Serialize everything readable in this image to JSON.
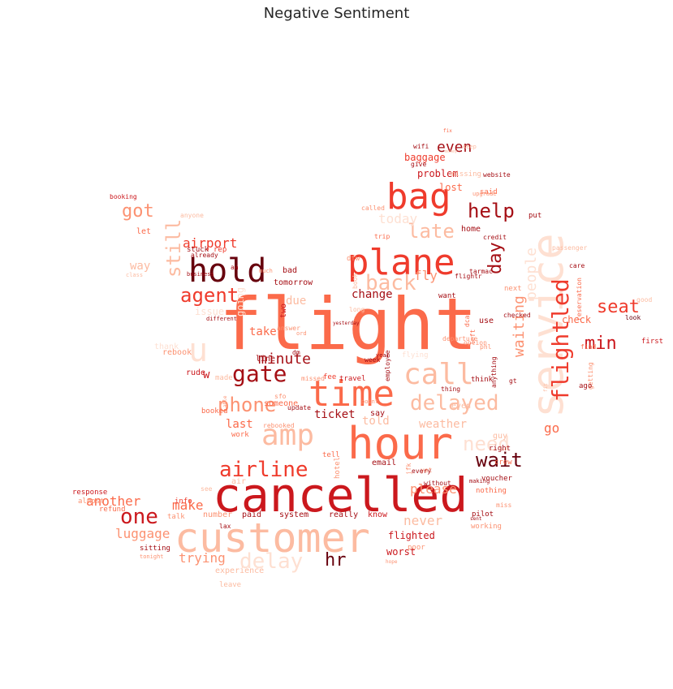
{
  "title": "Negative Sentiment",
  "palette": [
    "#67000d",
    "#a50f15",
    "#cb181d",
    "#ef3b2c",
    "#fb6a4a",
    "#fc9272",
    "#fcbba1",
    "#fee0d2"
  ],
  "words": [
    {
      "text": "flight",
      "color": "#fb6a4a"
    },
    {
      "text": "cancelled",
      "color": "#cb181d"
    },
    {
      "text": "customer",
      "color": "#fcbba1"
    },
    {
      "text": "hour",
      "color": "#fb6a4a"
    },
    {
      "text": "service",
      "color": "#fee0d2"
    },
    {
      "text": "time",
      "color": "#fb6a4a"
    },
    {
      "text": "plane",
      "color": "#ef3b2c"
    },
    {
      "text": "bag",
      "color": "#ef3b2c"
    },
    {
      "text": "hold",
      "color": "#67000d"
    },
    {
      "text": "amp",
      "color": "#fcbba1"
    },
    {
      "text": "call",
      "color": "#fcbba1"
    },
    {
      "text": "delayed",
      "color": "#fcbba1"
    },
    {
      "text": "u",
      "color": "#fee0d2"
    },
    {
      "text": "gate",
      "color": "#a50f15"
    },
    {
      "text": "airline",
      "color": "#ef3b2c"
    },
    {
      "text": "delay",
      "color": "#fee0d2"
    },
    {
      "text": "back",
      "color": "#fcbba1"
    },
    {
      "text": "flightled",
      "color": "#ef3b2c"
    },
    {
      "text": "phone",
      "color": "#fc9272"
    },
    {
      "text": "help",
      "color": "#a50f15"
    },
    {
      "text": "late",
      "color": "#fcbba1"
    },
    {
      "text": "one",
      "color": "#cb181d"
    },
    {
      "text": "agent",
      "color": "#ef3b2c"
    },
    {
      "text": "need",
      "color": "#fee0d2"
    },
    {
      "text": "wait",
      "color": "#67000d"
    },
    {
      "text": "still",
      "color": "#fcbba1"
    },
    {
      "text": "day",
      "color": "#a50f15"
    },
    {
      "text": "seat",
      "color": "#ef3b2c"
    },
    {
      "text": "got",
      "color": "#fc9272"
    },
    {
      "text": "min",
      "color": "#cb181d"
    },
    {
      "text": "even",
      "color": "#a50f15"
    },
    {
      "text": "minute",
      "color": "#a50f15"
    },
    {
      "text": "waiting",
      "color": "#fc9272"
    },
    {
      "text": "people",
      "color": "#fee0d2"
    },
    {
      "text": "hr",
      "color": "#67000d"
    },
    {
      "text": "airport",
      "color": "#ef3b2c"
    },
    {
      "text": "trying",
      "color": "#fc9272"
    },
    {
      "text": "luggage",
      "color": "#fc9272"
    },
    {
      "text": "another",
      "color": "#fb6a4a"
    },
    {
      "text": "make",
      "color": "#fb6a4a"
    },
    {
      "text": "never",
      "color": "#fcbba1"
    },
    {
      "text": "please",
      "color": "#fc9272"
    },
    {
      "text": "fly",
      "color": "#fc9272"
    },
    {
      "text": "today",
      "color": "#fee0d2"
    },
    {
      "text": "ticket",
      "color": "#a50f15"
    },
    {
      "text": "told",
      "color": "#fcbba1"
    },
    {
      "text": "weather",
      "color": "#fcbba1"
    },
    {
      "text": "change",
      "color": "#a50f15"
    },
    {
      "text": "take",
      "color": "#fb6a4a"
    },
    {
      "text": "last",
      "color": "#fb6a4a"
    },
    {
      "text": "way",
      "color": "#fcbba1"
    },
    {
      "text": "go",
      "color": "#fb6a4a"
    },
    {
      "text": "due",
      "color": "#fcbba1"
    },
    {
      "text": "going",
      "color": "#fee0d2"
    },
    {
      "text": "problem",
      "color": "#cb181d"
    },
    {
      "text": "baggage",
      "color": "#ef3b2c"
    },
    {
      "text": "lost",
      "color": "#fb6a4a"
    },
    {
      "text": "home",
      "color": "#a50f15"
    },
    {
      "text": "check",
      "color": "#fb6a4a"
    },
    {
      "text": "flighted",
      "color": "#cb181d"
    },
    {
      "text": "worst",
      "color": "#cb181d"
    },
    {
      "text": "experience",
      "color": "#fcbba1"
    },
    {
      "text": "email",
      "color": "#a50f15"
    },
    {
      "text": "know",
      "color": "#cb181d"
    },
    {
      "text": "really",
      "color": "#a50f15"
    },
    {
      "text": "system",
      "color": "#a50f15"
    },
    {
      "text": "paid",
      "color": "#a50f15"
    },
    {
      "text": "number",
      "color": "#fc9272"
    },
    {
      "text": "info",
      "color": "#ef3b2c"
    },
    {
      "text": "talk",
      "color": "#fc9272"
    },
    {
      "text": "refund",
      "color": "#fb6a4a"
    },
    {
      "text": "response",
      "color": "#cb181d"
    },
    {
      "text": "almost",
      "color": "#fc9272"
    },
    {
      "text": "sitting",
      "color": "#a50f15"
    },
    {
      "text": "tonight",
      "color": "#fc9272"
    },
    {
      "text": "leave",
      "color": "#fcbba1"
    },
    {
      "text": "pilot",
      "color": "#a50f15"
    },
    {
      "text": "nothing",
      "color": "#fb6a4a"
    },
    {
      "text": "working",
      "color": "#fc9272"
    },
    {
      "text": "voucher",
      "color": "#a50f15"
    },
    {
      "text": "crew",
      "color": "#fb6a4a"
    },
    {
      "text": "guy",
      "color": "#fcbba1"
    },
    {
      "text": "right",
      "color": "#a50f15"
    },
    {
      "text": "work",
      "color": "#fb6a4a"
    },
    {
      "text": "air",
      "color": "#fcbba1"
    },
    {
      "text": "hotel",
      "color": "#fc9272"
    },
    {
      "text": "tell",
      "color": "#fb6a4a"
    },
    {
      "text": "say",
      "color": "#a50f15"
    },
    {
      "text": "travel",
      "color": "#cb181d"
    },
    {
      "text": "fee",
      "color": "#ef3b2c"
    },
    {
      "text": "someone",
      "color": "#fb6a4a"
    },
    {
      "text": "rude",
      "color": "#cb181d"
    },
    {
      "text": "w",
      "color": "#cb181d"
    },
    {
      "text": "made",
      "color": "#fcbba1"
    },
    {
      "text": "booked",
      "color": "#fb6a4a"
    },
    {
      "text": "rebook",
      "color": "#fc9272"
    },
    {
      "text": "thank",
      "color": "#fee0d2"
    },
    {
      "text": "issue",
      "color": "#fee0d2"
    },
    {
      "text": "line",
      "color": "#a50f15"
    },
    {
      "text": "two",
      "color": "#cb181d"
    },
    {
      "text": "bad",
      "color": "#a50f15"
    },
    {
      "text": "tomorrow",
      "color": "#a50f15"
    },
    {
      "text": "already",
      "color": "#a50f15"
    },
    {
      "text": "stuck",
      "color": "#a50f15"
    },
    {
      "text": "rep",
      "color": "#ef3b2c"
    },
    {
      "text": "let",
      "color": "#fb6a4a"
    },
    {
      "text": "booking",
      "color": "#cb181d"
    },
    {
      "text": "anyone",
      "color": "#fcbba1"
    },
    {
      "text": "class",
      "color": "#fcbba1"
    },
    {
      "text": "business",
      "color": "#a50f15"
    },
    {
      "text": "wifi",
      "color": "#a50f15"
    },
    {
      "text": "give",
      "color": "#a50f15"
    },
    {
      "text": "missing",
      "color": "#fcbba1"
    },
    {
      "text": "website",
      "color": "#a50f15"
    },
    {
      "text": "said",
      "color": "#fb6a4a"
    },
    {
      "text": "called",
      "color": "#fc9272"
    },
    {
      "text": "upgrade",
      "color": "#fc9272"
    },
    {
      "text": "trip",
      "color": "#fb6a4a"
    },
    {
      "text": "credit",
      "color": "#a50f15"
    },
    {
      "text": "care",
      "color": "#a50f15"
    },
    {
      "text": "put",
      "color": "#a50f15"
    },
    {
      "text": "reservation",
      "color": "#fb6a4a"
    },
    {
      "text": "first",
      "color": "#cb181d"
    },
    {
      "text": "look",
      "color": "#67000d"
    },
    {
      "text": "good",
      "color": "#fcbba1"
    },
    {
      "text": "getting",
      "color": "#fc9272"
    },
    {
      "text": "find",
      "color": "#fb6a4a"
    },
    {
      "text": "ago",
      "color": "#a50f15"
    },
    {
      "text": "next",
      "color": "#fc9272"
    },
    {
      "text": "checked",
      "color": "#a50f15"
    },
    {
      "text": "flightr",
      "color": "#a50f15"
    },
    {
      "text": "tarmac",
      "color": "#a50f15"
    },
    {
      "text": "want",
      "color": "#a50f15"
    },
    {
      "text": "use",
      "color": "#a50f15"
    },
    {
      "text": "left",
      "color": "#fb6a4a"
    },
    {
      "text": "think",
      "color": "#a50f15"
    },
    {
      "text": "dca",
      "color": "#fb6a4a"
    },
    {
      "text": "option",
      "color": "#fc9272"
    },
    {
      "text": "year",
      "color": "#a50f15"
    },
    {
      "text": "week",
      "color": "#a50f15"
    },
    {
      "text": "flying",
      "color": "#fee0d2"
    },
    {
      "text": "dfw",
      "color": "#fc9272"
    },
    {
      "text": "jfk",
      "color": "#fc9272"
    },
    {
      "text": "without",
      "color": "#a50f15"
    },
    {
      "text": "yet",
      "color": "#fc9272"
    },
    {
      "text": "miss",
      "color": "#fc9272"
    },
    {
      "text": "sfo",
      "color": "#fc9272"
    },
    {
      "text": "lax",
      "color": "#a50f15"
    },
    {
      "text": "employee",
      "color": "#a50f15"
    },
    {
      "text": "update",
      "color": "#a50f15"
    },
    {
      "text": "rebooked",
      "color": "#fc9272"
    },
    {
      "text": "missed",
      "color": "#fc9272"
    },
    {
      "text": "answer",
      "color": "#fc9272"
    },
    {
      "text": "different",
      "color": "#a50f15"
    },
    {
      "text": "much",
      "color": "#fc9272"
    },
    {
      "text": "fix",
      "color": "#fb6a4a"
    },
    {
      "text": "keep",
      "color": "#fcbba1"
    },
    {
      "text": "money",
      "color": "#fcbba1"
    },
    {
      "text": "passenger",
      "color": "#fcbba1"
    },
    {
      "text": "every",
      "color": "#a50f15"
    },
    {
      "text": "departure",
      "color": "#fc9272"
    },
    {
      "text": "thing",
      "color": "#a50f15"
    },
    {
      "text": "anything",
      "color": "#a50f15"
    },
    {
      "text": "point",
      "color": "#fc9272"
    },
    {
      "text": "making",
      "color": "#a50f15"
    },
    {
      "text": "sent",
      "color": "#a50f15"
    },
    {
      "text": "poor",
      "color": "#fc9272"
    },
    {
      "text": "hope",
      "color": "#fc9272"
    },
    {
      "text": "yesterday",
      "color": "#a50f15"
    },
    {
      "text": "long",
      "color": "#fcbba1"
    },
    {
      "text": "phl",
      "color": "#fc9272"
    },
    {
      "text": "book",
      "color": "#fcbba1"
    },
    {
      "text": "aa",
      "color": "#a50f15"
    },
    {
      "text": "ord",
      "color": "#fc9272"
    },
    {
      "text": "dm",
      "color": "#a50f15"
    },
    {
      "text": "see",
      "color": "#fcbba1"
    },
    {
      "text": "able",
      "color": "#fc9272"
    },
    {
      "text": "fit",
      "color": "#fcbba1"
    },
    {
      "text": "gt",
      "color": "#a50f15"
    },
    {
      "text": "even",
      "color": "#fcbba1"
    }
  ]
}
